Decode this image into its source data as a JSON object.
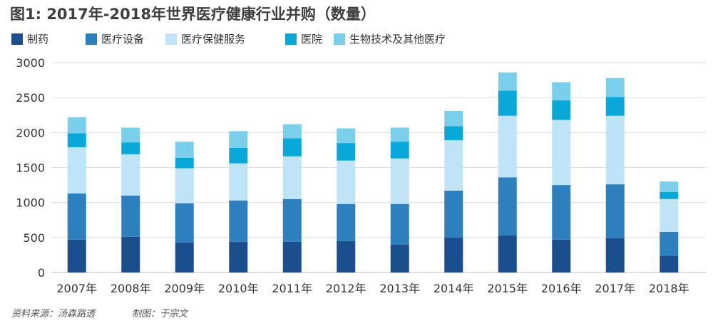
{
  "chart_data": {
    "type": "bar",
    "stacked": true,
    "title": "图1: 2017年-2018年世界医疗健康行业并购（数量）",
    "xlabel": "",
    "ylabel": "",
    "ylim": [
      0,
      3000
    ],
    "yticks": [
      0,
      500,
      1000,
      1500,
      2000,
      2500,
      3000
    ],
    "grid": true,
    "legend": "top-left",
    "categories": [
      "2007年",
      "2008年",
      "2009年",
      "2010年",
      "2011年",
      "2012年",
      "2013年",
      "2014年",
      "2015年",
      "2016年",
      "2017年",
      "2018年"
    ],
    "series": [
      {
        "name": "制药",
        "color": "#1a4e8c",
        "values": [
          470,
          510,
          430,
          440,
          440,
          450,
          400,
          500,
          530,
          470,
          490,
          240
        ]
      },
      {
        "name": "医疗设备",
        "color": "#2d80bd",
        "values": [
          660,
          590,
          560,
          590,
          610,
          530,
          580,
          670,
          830,
          780,
          770,
          340
        ]
      },
      {
        "name": "医疗保健服务",
        "color": "#bfe4f8",
        "values": [
          660,
          590,
          500,
          530,
          610,
          620,
          650,
          720,
          880,
          930,
          980,
          470
        ]
      },
      {
        "name": "医院",
        "color": "#0aa8d8",
        "values": [
          200,
          170,
          150,
          220,
          260,
          250,
          240,
          200,
          360,
          280,
          270,
          100
        ]
      },
      {
        "name": "生物技术及其他医疗",
        "color": "#7acfea",
        "values": [
          230,
          210,
          230,
          240,
          200,
          210,
          200,
          220,
          260,
          260,
          270,
          150
        ]
      }
    ]
  },
  "footer": {
    "source": "资料来源：汤森路透",
    "author": "制图：于宗文"
  }
}
